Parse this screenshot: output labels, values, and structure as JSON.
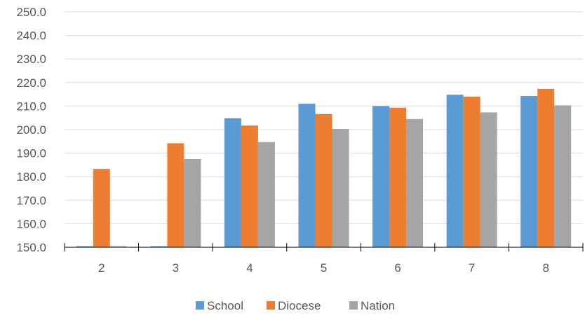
{
  "chart_data": {
    "type": "bar",
    "title": "",
    "xlabel": "",
    "ylabel": "",
    "categories": [
      "2",
      "3",
      "4",
      "5",
      "6",
      "7",
      "8"
    ],
    "ylim": [
      150.0,
      250.0
    ],
    "yticks": [
      "150.0",
      "160.0",
      "170.0",
      "180.0",
      "190.0",
      "200.0",
      "210.0",
      "220.0",
      "230.0",
      "240.0",
      "250.0"
    ],
    "grid": true,
    "legend_position": "bottom",
    "series": [
      {
        "name": "School",
        "color": "#5B9BD5",
        "values": [
          150.3,
          150.3,
          204.8,
          211.0,
          210.0,
          214.8,
          214.3
        ]
      },
      {
        "name": "Diocese",
        "color": "#ED7D31",
        "values": [
          183.3,
          194.2,
          201.7,
          206.6,
          209.3,
          214.0,
          217.3
        ]
      },
      {
        "name": "Nation",
        "color": "#A5A5A5",
        "values": [
          150.3,
          187.5,
          194.7,
          200.3,
          204.5,
          207.3,
          210.3
        ]
      }
    ]
  }
}
